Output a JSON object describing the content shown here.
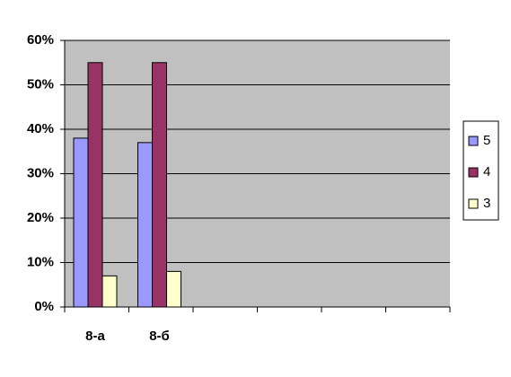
{
  "chart_data": {
    "type": "bar",
    "categories": [
      "8-а",
      "8-б",
      null,
      null,
      null,
      null
    ],
    "series": [
      {
        "name": "5",
        "color": "#9999ff",
        "values": [
          38,
          37,
          null,
          null,
          null,
          null
        ]
      },
      {
        "name": "4",
        "color": "#993366",
        "values": [
          55,
          55,
          null,
          null,
          null,
          null
        ]
      },
      {
        "name": "3",
        "color": "#ffffcc",
        "values": [
          7,
          8,
          null,
          null,
          null,
          null
        ]
      }
    ],
    "ylim": [
      0,
      60
    ],
    "yticks": [
      {
        "value": 0,
        "label": "0%"
      },
      {
        "value": 10,
        "label": "10%"
      },
      {
        "value": 20,
        "label": "20%"
      },
      {
        "value": 30,
        "label": "30%"
      },
      {
        "value": 40,
        "label": "40%"
      },
      {
        "value": 50,
        "label": "50%"
      },
      {
        "value": 60,
        "label": "60%"
      }
    ],
    "grid": true
  }
}
